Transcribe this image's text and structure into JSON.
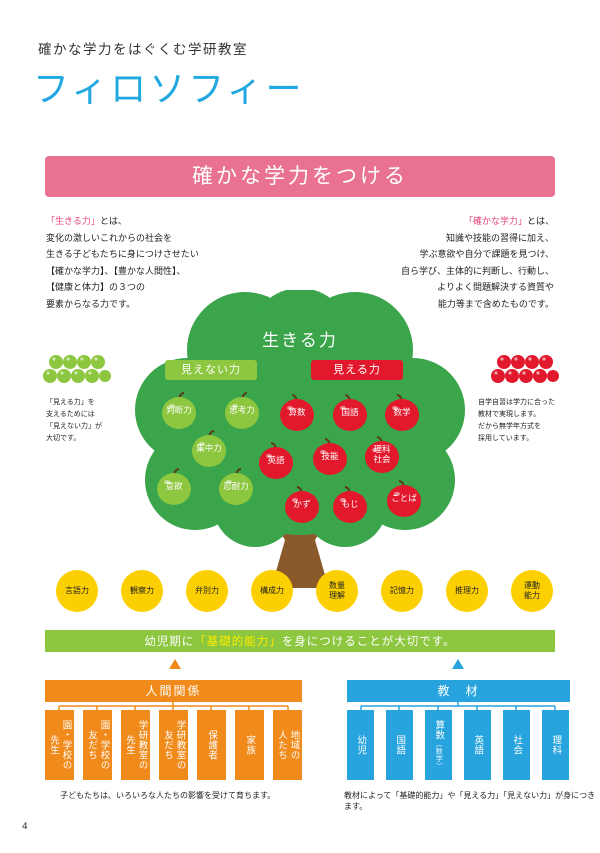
{
  "header": {
    "subtitle": "確かな学力をはぐくむ学研教室",
    "title": "フィロソフィー"
  },
  "banner": {
    "text": "確かな学力をつける"
  },
  "left_paragraph": {
    "highlight": "「生きる力」",
    "line1_rest": "とは、",
    "lines": [
      "変化の激しいこれからの社会を",
      "生きる子どもたちに身につけさせたい",
      "【確かな学力】、【豊かな人間性】、",
      "【健康と体力】の３つの",
      "要素からなる力です。"
    ]
  },
  "right_paragraph": {
    "highlight": "「確かな学力」",
    "line1_rest": "とは、",
    "lines": [
      "知識や技能の習得に加え、",
      "学ぶ意欲や自分で課題を見つけ、",
      "自ら学び、主体的に判断し、行動し、",
      "よりよく問題解決する資質や",
      "能力等まで含めたものです。"
    ]
  },
  "left_note": {
    "lines": [
      "「見える力」を",
      "支えるためには",
      "「見えない力」が",
      "大切です。"
    ]
  },
  "right_note": {
    "lines": [
      "自学自習は学力に合った",
      "教材で実現します。",
      "だから無学年方式を",
      "採用しています。"
    ]
  },
  "tree": {
    "title": "生きる力",
    "invisible_label": "見えない力",
    "visible_label": "見える力",
    "green_apples": [
      "判断力",
      "思考力",
      "集中力",
      "意欲",
      "忍耐力"
    ],
    "red_apples": [
      "算数",
      "国語",
      "数学",
      "英語",
      "技能",
      "理科\n社会",
      "かず",
      "もじ",
      "ことば"
    ]
  },
  "skills": [
    "言語力",
    "観察力",
    "弁別力",
    "構成力",
    "数量\n理解",
    "記憶力",
    "推理力",
    "運動\n能力"
  ],
  "green_bar": {
    "before": "幼児期に",
    "highlight": "「基礎的能力」",
    "after": "を身につけることが大切です。"
  },
  "human_group": {
    "title": "人間関係",
    "items": [
      [
        "先生",
        "園・学校の"
      ],
      [
        "友だち",
        "園・学校の"
      ],
      [
        "先生",
        "学研教室の"
      ],
      [
        "友だち",
        "学研教室の"
      ],
      [
        "保護者"
      ],
      [
        "家族"
      ],
      [
        "人たち",
        "地域の"
      ]
    ],
    "footnote": "子どもたちは、いろいろな人たちの影響を受けて育ちます。"
  },
  "materials_group": {
    "title": "教　材",
    "items": [
      "幼児",
      "国語",
      "算数",
      "英語",
      "社会",
      "理科"
    ],
    "math_sub": "（数学）",
    "footnote": "教材によって「基礎的能力」や「見える力」「見えない力」が身につきます。"
  },
  "page_number": "4",
  "colors": {
    "title_blue": "#22a8e0",
    "banner_pink": "#e8728f",
    "tree_green": "#3aa54a",
    "apple_green": "#8dc63f",
    "apple_red": "#e2192c",
    "skill_yellow": "#fcd000",
    "orange": "#f08a1a",
    "blue": "#27a4de"
  }
}
